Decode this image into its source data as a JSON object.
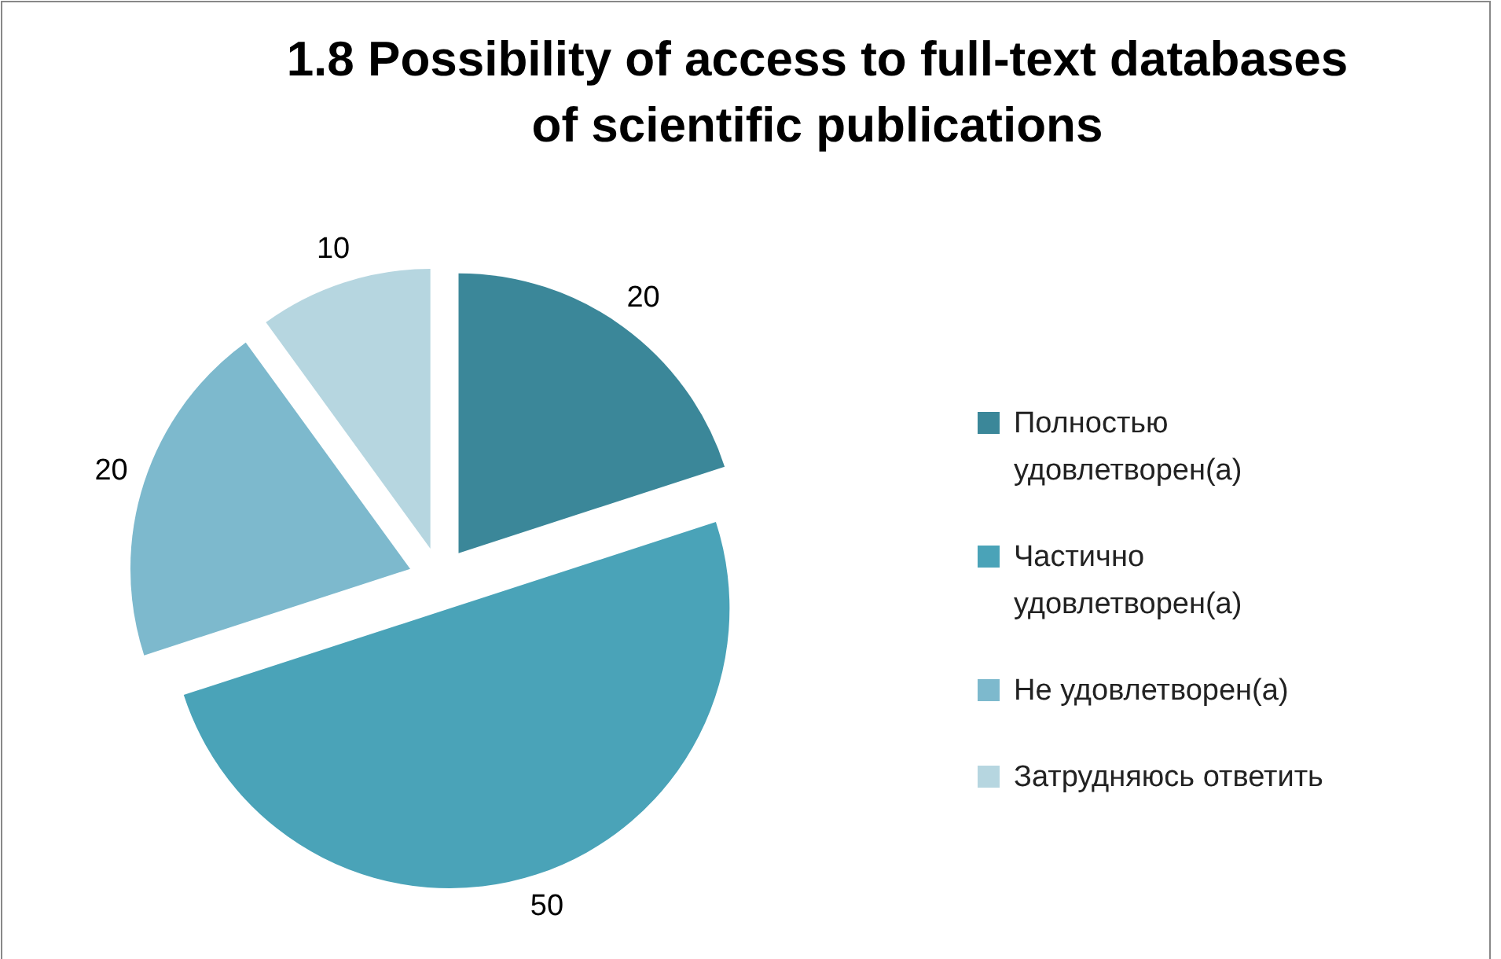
{
  "chart_data": {
    "type": "pie",
    "title": "1.8 Possibility of access to full-text databases of scientific publications",
    "categories": [
      "Полностью удовлетворен(а)",
      "Частично удовлетворен(а)",
      "Не удовлетворен(а)",
      "Затрудняюсь ответить"
    ],
    "values": [
      20,
      50,
      20,
      10
    ],
    "colors": [
      "#3b8799",
      "#4aa3b8",
      "#7db9cd",
      "#b6d6e0"
    ],
    "data_labels": true,
    "legend": "right"
  }
}
